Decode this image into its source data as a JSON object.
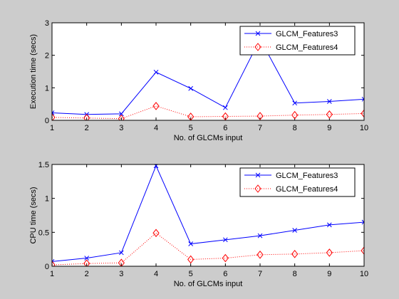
{
  "chart_data": [
    {
      "type": "line",
      "xlabel": "No. of GLCMs input",
      "ylabel": "Execution time (secs)",
      "xlim": [
        1,
        10
      ],
      "ylim": [
        0,
        3
      ],
      "xticks": [
        "1",
        "2",
        "3",
        "4",
        "5",
        "6",
        "7",
        "8",
        "9",
        "10"
      ],
      "yticks": [
        "0",
        "1",
        "2",
        "3"
      ],
      "x": [
        1,
        2,
        3,
        4,
        5,
        6,
        7,
        8,
        9,
        10
      ],
      "legend_position": "top-right",
      "series": [
        {
          "name": "GLCM_Features3",
          "color": "#0000ff",
          "style": "solid",
          "marker": "x",
          "values": [
            0.23,
            0.18,
            0.2,
            1.48,
            0.98,
            0.39,
            2.5,
            0.53,
            0.58,
            0.65
          ]
        },
        {
          "name": "GLCM_Features4",
          "color": "#ff0000",
          "style": "dotted",
          "marker": "diamond",
          "values": [
            0.09,
            0.07,
            0.05,
            0.44,
            0.11,
            0.12,
            0.13,
            0.16,
            0.18,
            0.21
          ]
        }
      ]
    },
    {
      "type": "line",
      "xlabel": "No. of GLCMs input",
      "ylabel": "CPU time (secs)",
      "xlim": [
        1,
        10
      ],
      "ylim": [
        0,
        1.5
      ],
      "xticks": [
        "1",
        "2",
        "3",
        "4",
        "5",
        "6",
        "7",
        "8",
        "9",
        "10"
      ],
      "yticks": [
        "0",
        "0.5",
        "1",
        "1.5"
      ],
      "x": [
        1,
        2,
        3,
        4,
        5,
        6,
        7,
        8,
        9,
        10
      ],
      "legend_position": "top-right",
      "series": [
        {
          "name": "GLCM_Features3",
          "color": "#0000ff",
          "style": "solid",
          "marker": "x",
          "values": [
            0.07,
            0.12,
            0.2,
            1.48,
            0.33,
            0.39,
            0.45,
            0.53,
            0.61,
            0.65
          ]
        },
        {
          "name": "GLCM_Features4",
          "color": "#ff0000",
          "style": "dotted",
          "marker": "diamond",
          "values": [
            0.02,
            0.04,
            0.05,
            0.49,
            0.1,
            0.12,
            0.17,
            0.18,
            0.2,
            0.23
          ]
        }
      ]
    }
  ]
}
